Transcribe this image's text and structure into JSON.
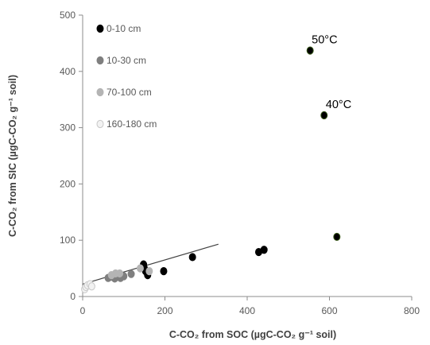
{
  "chart_data": {
    "type": "scatter",
    "xlabel": "C-CO₂ from SOC (µgC-CO₂ g⁻¹ soil)",
    "ylabel": "C-CO₂ from SIC (µgC-CO₂ g⁻¹ soil)",
    "xlim": [
      0,
      800
    ],
    "ylim": [
      0,
      500
    ],
    "xticks": [
      0,
      200,
      400,
      600,
      800
    ],
    "yticks": [
      0,
      100,
      200,
      300,
      400,
      500
    ],
    "grid": false,
    "legend_position": "top-left",
    "series": [
      {
        "name": "0-10 cm",
        "color": "#000000",
        "points": [
          [
            148,
            57
          ],
          [
            150,
            50
          ],
          [
            153,
            45
          ],
          [
            158,
            38
          ],
          [
            197,
            45
          ],
          [
            267,
            70
          ],
          [
            428,
            79
          ],
          [
            441,
            83
          ],
          [
            95,
            36
          ],
          [
            553,
            437
          ],
          [
            587,
            322
          ],
          [
            618,
            106
          ]
        ]
      },
      {
        "name": "10-30 cm",
        "color": "#7f7f7f",
        "points": [
          [
            62,
            33
          ],
          [
            68,
            35
          ],
          [
            74,
            37
          ],
          [
            78,
            32
          ],
          [
            84,
            38
          ],
          [
            88,
            35
          ],
          [
            92,
            33
          ],
          [
            100,
            36
          ],
          [
            118,
            40
          ]
        ]
      },
      {
        "name": "70-100 cm",
        "color": "#b4b4b4",
        "points": [
          [
            70,
            38
          ],
          [
            80,
            41
          ],
          [
            90,
            41
          ],
          [
            140,
            50
          ],
          [
            162,
            45
          ]
        ]
      },
      {
        "name": "160-180 cm",
        "color": "#f2f2f2",
        "points": [
          [
            5,
            13
          ],
          [
            8,
            17
          ],
          [
            12,
            20
          ],
          [
            18,
            22
          ],
          [
            22,
            18
          ]
        ]
      }
    ],
    "trendline": {
      "x1": 0,
      "y1": 22,
      "x2": 330,
      "y2": 93
    },
    "annotations": [
      {
        "text": "50°C",
        "x": 553,
        "y": 437
      },
      {
        "text": "40°C",
        "x": 587,
        "y": 322
      }
    ]
  }
}
